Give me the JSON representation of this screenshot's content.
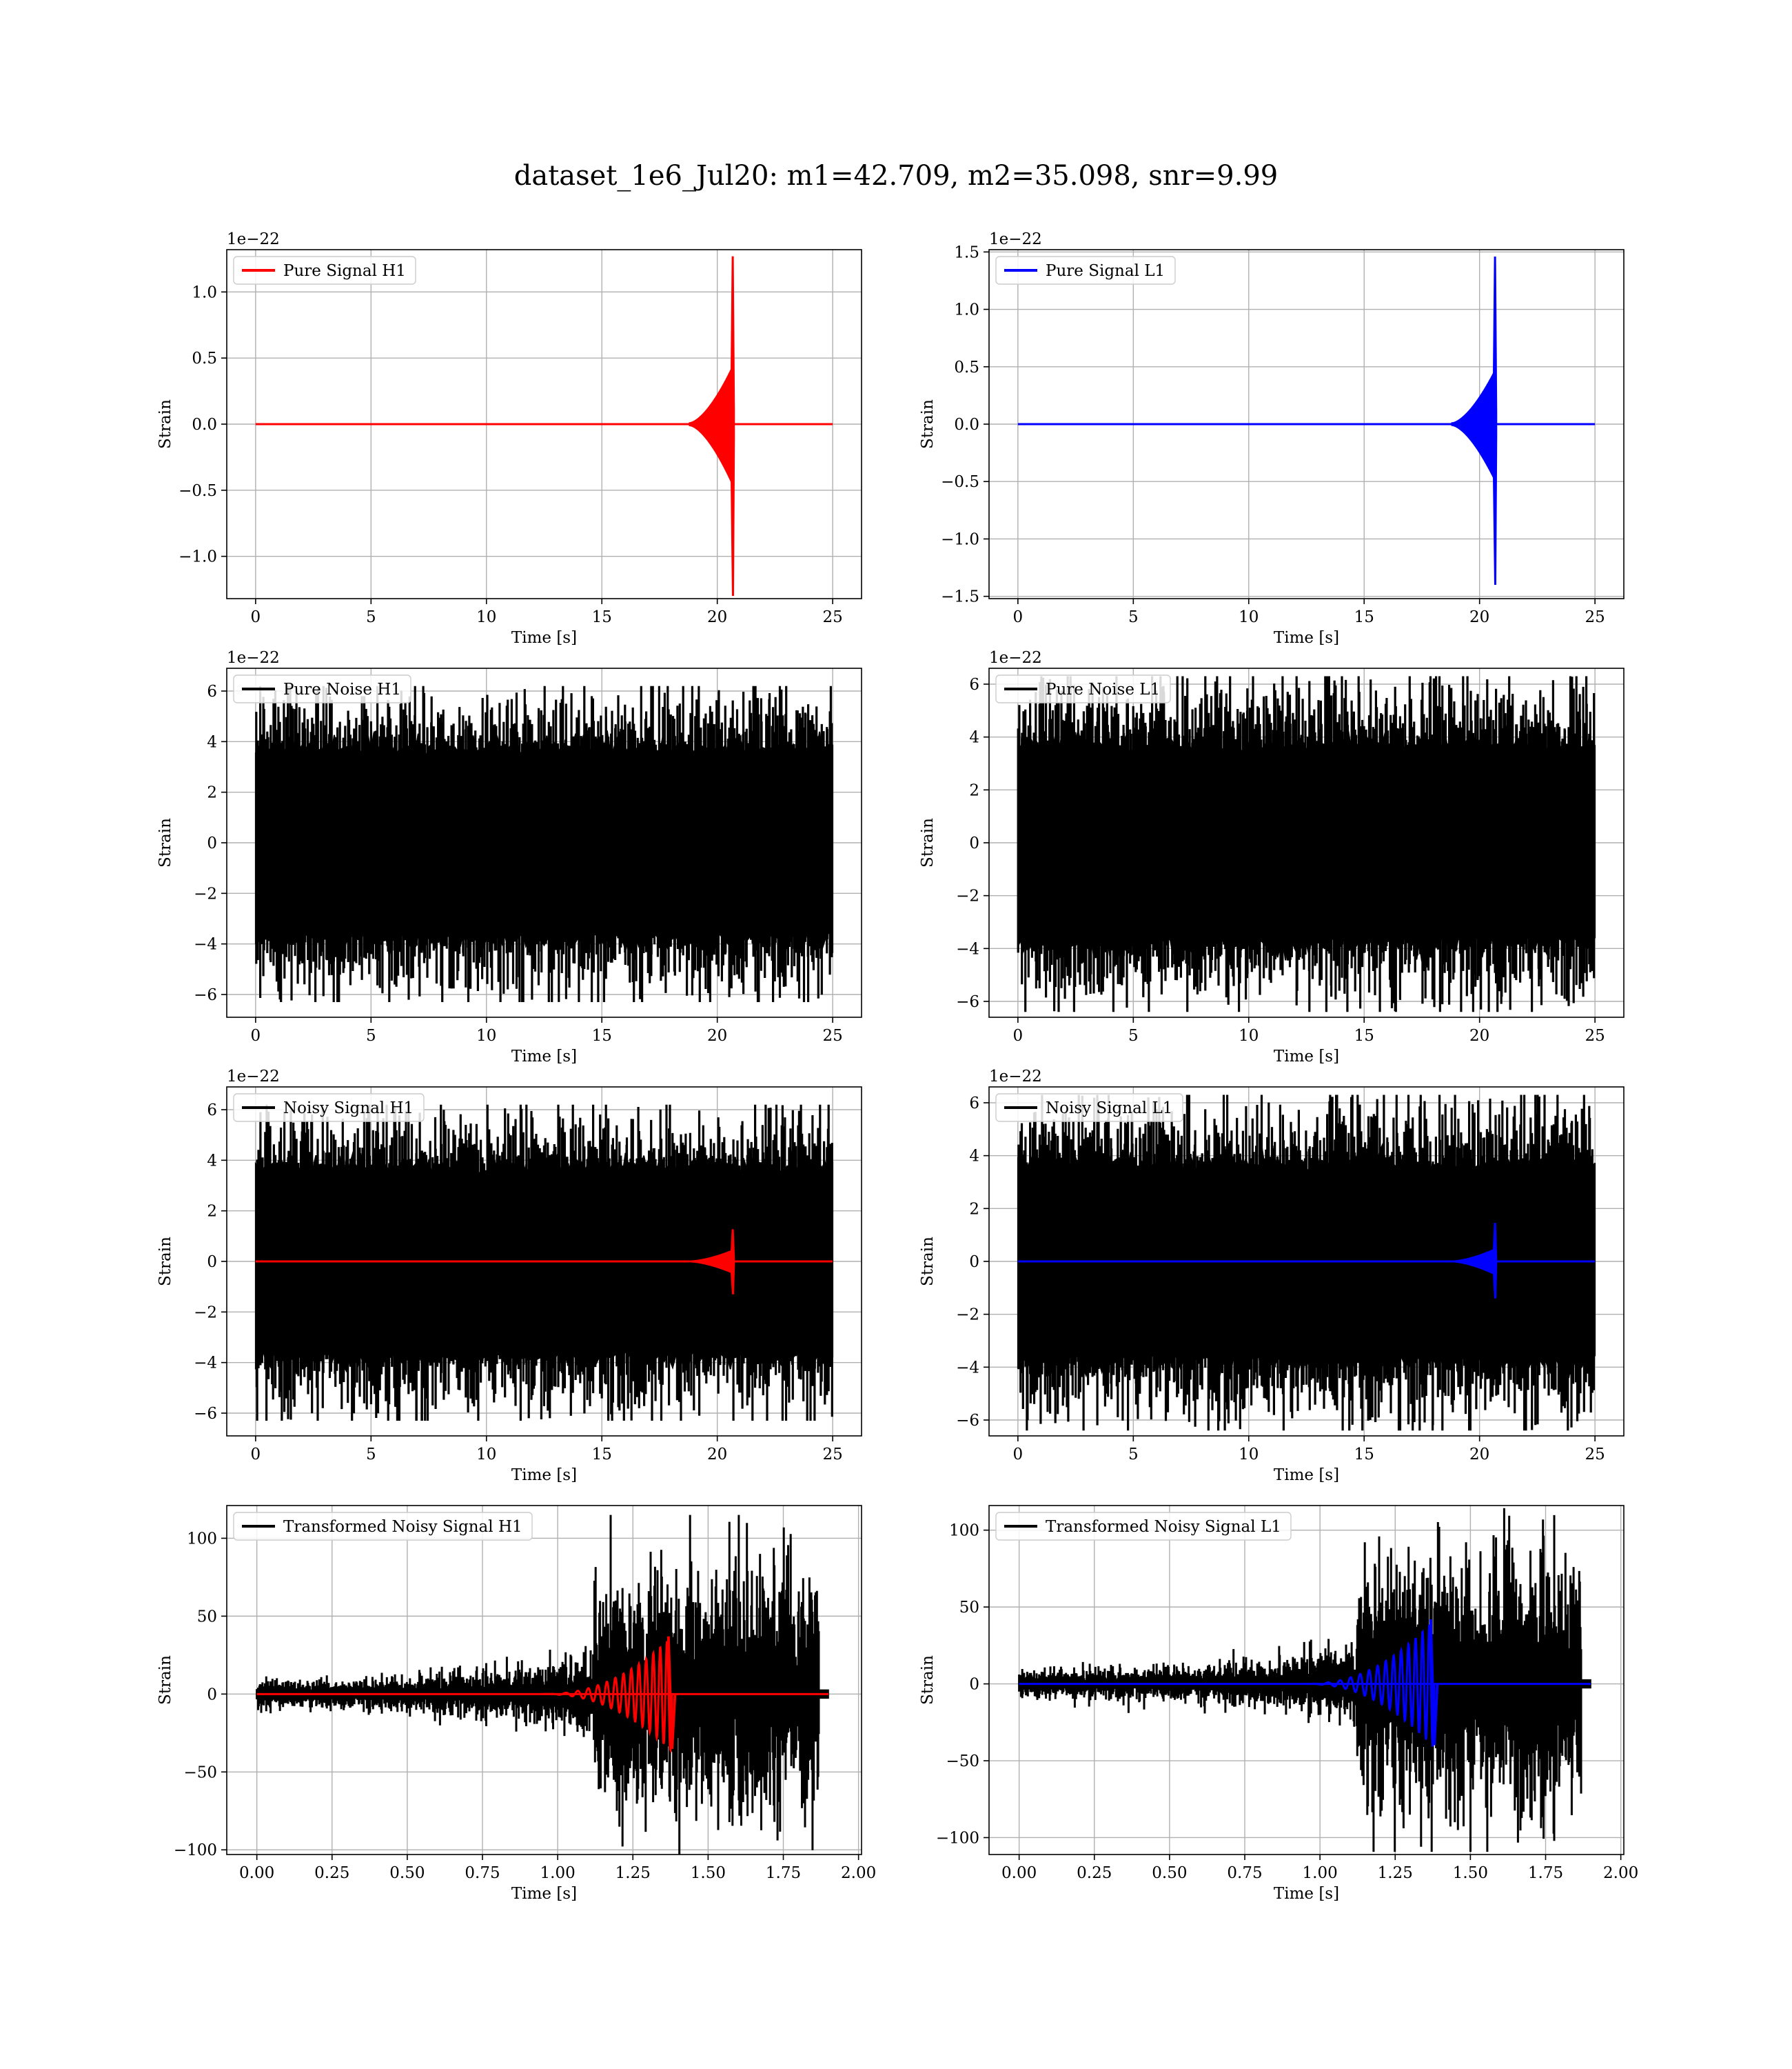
{
  "figure_title": "dataset_1e6_Jul20: m1=42.709, m2=35.098, snr=9.99",
  "colors": {
    "h1_signal": "#ff0000",
    "l1_signal": "#0000ff",
    "noise": "#000000",
    "grid": "#b0b0b0"
  },
  "chart_data": [
    {
      "type": "line",
      "panel": "pure-signal-h1",
      "title": "",
      "xlabel": "Time [s]",
      "ylabel": "Strain",
      "offset_text": "1e−22",
      "xlim": [
        -1.25,
        26.25
      ],
      "ylim": [
        -1.32,
        1.32
      ],
      "xticks": [
        0,
        5,
        10,
        15,
        20,
        25
      ],
      "xtick_labels": [
        "0",
        "5",
        "10",
        "15",
        "20",
        "25"
      ],
      "yticks": [
        -1.0,
        -0.5,
        0.0,
        0.5,
        1.0
      ],
      "ytick_labels": [
        "−1.0",
        "−0.5",
        "0.0",
        "0.5",
        "1.0"
      ],
      "grid": true,
      "legend_placement": "upper-left",
      "series": [
        {
          "name": "Pure Signal H1",
          "color": "#ff0000",
          "kind": "chirp",
          "x_range": [
            0,
            25
          ],
          "merger_t": 20.7,
          "onset_t": 18.8,
          "inspiral_amp": 0.42,
          "peak_up": 1.27,
          "peak_down": -1.3,
          "ringdown_end": 20.75,
          "legend": true
        }
      ]
    },
    {
      "type": "line",
      "panel": "pure-signal-l1",
      "title": "",
      "xlabel": "Time [s]",
      "ylabel": "Strain",
      "offset_text": "1e−22",
      "xlim": [
        -1.25,
        26.25
      ],
      "ylim": [
        -1.52,
        1.52
      ],
      "xticks": [
        0,
        5,
        10,
        15,
        20,
        25
      ],
      "xtick_labels": [
        "0",
        "5",
        "10",
        "15",
        "20",
        "25"
      ],
      "yticks": [
        -1.5,
        -1.0,
        -0.5,
        0.0,
        0.5,
        1.0,
        1.5
      ],
      "ytick_labels": [
        "−1.5",
        "−1.0",
        "−0.5",
        "0.0",
        "0.5",
        "1.0",
        "1.5"
      ],
      "grid": true,
      "legend_placement": "upper-left",
      "series": [
        {
          "name": "Pure Signal L1",
          "color": "#0000ff",
          "kind": "chirp",
          "x_range": [
            0,
            25
          ],
          "merger_t": 20.7,
          "onset_t": 18.8,
          "inspiral_amp": 0.45,
          "peak_up": 1.46,
          "peak_down": -1.4,
          "ringdown_end": 20.75,
          "legend": true
        }
      ]
    },
    {
      "type": "line",
      "panel": "pure-noise-h1",
      "title": "",
      "xlabel": "Time [s]",
      "ylabel": "Strain",
      "offset_text": "1e−22",
      "xlim": [
        -1.25,
        26.25
      ],
      "ylim": [
        -6.9,
        6.9
      ],
      "xticks": [
        0,
        5,
        10,
        15,
        20,
        25
      ],
      "xtick_labels": [
        "0",
        "5",
        "10",
        "15",
        "20",
        "25"
      ],
      "yticks": [
        -6,
        -4,
        -2,
        0,
        2,
        4,
        6
      ],
      "ytick_labels": [
        "−6",
        "−4",
        "−2",
        "0",
        "2",
        "4",
        "6"
      ],
      "grid": true,
      "legend_placement": "upper-left",
      "series": [
        {
          "name": "Pure Noise H1",
          "color": "#000000",
          "kind": "noise",
          "x_range": [
            0,
            25
          ],
          "band": 3.0,
          "peak": 6.2,
          "seed": 11,
          "legend": true
        }
      ]
    },
    {
      "type": "line",
      "panel": "pure-noise-l1",
      "title": "",
      "xlabel": "Time [s]",
      "ylabel": "Strain",
      "offset_text": "1e−22",
      "xlim": [
        -1.25,
        26.25
      ],
      "ylim": [
        -6.6,
        6.6
      ],
      "xticks": [
        0,
        5,
        10,
        15,
        20,
        25
      ],
      "xtick_labels": [
        "0",
        "5",
        "10",
        "15",
        "20",
        "25"
      ],
      "yticks": [
        -6,
        -4,
        -2,
        0,
        2,
        4,
        6
      ],
      "ytick_labels": [
        "−6",
        "−4",
        "−2",
        "0",
        "2",
        "4",
        "6"
      ],
      "grid": true,
      "legend_placement": "upper-left",
      "series": [
        {
          "name": "Pure Noise L1",
          "color": "#000000",
          "kind": "noise",
          "x_range": [
            0,
            25
          ],
          "band": 3.0,
          "peak": 6.3,
          "seed": 23,
          "legend": true
        }
      ]
    },
    {
      "type": "line",
      "panel": "noisy-signal-h1",
      "title": "",
      "xlabel": "Time [s]",
      "ylabel": "Strain",
      "offset_text": "1e−22",
      "xlim": [
        -1.25,
        26.25
      ],
      "ylim": [
        -6.9,
        6.9
      ],
      "xticks": [
        0,
        5,
        10,
        15,
        20,
        25
      ],
      "xtick_labels": [
        "0",
        "5",
        "10",
        "15",
        "20",
        "25"
      ],
      "yticks": [
        -6,
        -4,
        -2,
        0,
        2,
        4,
        6
      ],
      "ytick_labels": [
        "−6",
        "−4",
        "−2",
        "0",
        "2",
        "4",
        "6"
      ],
      "grid": true,
      "legend_placement": "upper-left",
      "series": [
        {
          "name": "Noisy Signal H1",
          "color": "#000000",
          "kind": "noise",
          "x_range": [
            0,
            25
          ],
          "band": 3.0,
          "peak": 6.2,
          "seed": 37,
          "legend": true
        },
        {
          "name": "",
          "color": "#ff0000",
          "kind": "chirp",
          "x_range": [
            0,
            25
          ],
          "merger_t": 20.7,
          "onset_t": 18.8,
          "inspiral_amp": 0.42,
          "peak_up": 1.27,
          "peak_down": -1.3,
          "ringdown_end": 20.75,
          "legend": false
        }
      ]
    },
    {
      "type": "line",
      "panel": "noisy-signal-l1",
      "title": "",
      "xlabel": "Time [s]",
      "ylabel": "Strain",
      "offset_text": "1e−22",
      "xlim": [
        -1.25,
        26.25
      ],
      "ylim": [
        -6.6,
        6.6
      ],
      "xticks": [
        0,
        5,
        10,
        15,
        20,
        25
      ],
      "xtick_labels": [
        "0",
        "5",
        "10",
        "15",
        "20",
        "25"
      ],
      "yticks": [
        -6,
        -4,
        -2,
        0,
        2,
        4,
        6
      ],
      "ytick_labels": [
        "−6",
        "−4",
        "−2",
        "0",
        "2",
        "4",
        "6"
      ],
      "grid": true,
      "legend_placement": "upper-left",
      "series": [
        {
          "name": "Noisy Signal L1",
          "color": "#000000",
          "kind": "noise",
          "x_range": [
            0,
            25
          ],
          "band": 3.0,
          "peak": 6.3,
          "seed": 53,
          "legend": true
        },
        {
          "name": "",
          "color": "#0000ff",
          "kind": "chirp",
          "x_range": [
            0,
            25
          ],
          "merger_t": 20.7,
          "onset_t": 18.8,
          "inspiral_amp": 0.45,
          "peak_up": 1.46,
          "peak_down": -1.4,
          "ringdown_end": 20.75,
          "legend": false
        }
      ]
    },
    {
      "type": "line",
      "panel": "transformed-noisy-signal-h1",
      "title": "",
      "xlabel": "Time [s]",
      "ylabel": "Strain",
      "offset_text": "",
      "xlim": [
        -0.1,
        2.01
      ],
      "ylim": [
        -103,
        121
      ],
      "xticks": [
        0,
        0.25,
        0.5,
        0.75,
        1.0,
        1.25,
        1.5,
        1.75,
        2.0
      ],
      "xtick_labels": [
        "0.00",
        "0.25",
        "0.50",
        "0.75",
        "1.00",
        "1.25",
        "1.50",
        "1.75",
        "2.00"
      ],
      "yticks": [
        -100,
        -50,
        0,
        50,
        100
      ],
      "ytick_labels": [
        "−100",
        "−50",
        "0",
        "50",
        "100"
      ],
      "grid": true,
      "legend_placement": "upper-left",
      "series": [
        {
          "name": "Transformed Noisy Signal H1",
          "color": "#000000",
          "kind": "wnoise",
          "x_range": [
            0,
            1.9
          ],
          "step_t": 1.12,
          "end_t": 1.87,
          "low_band": 5,
          "high_band": 40,
          "peak": 115,
          "seed": 71,
          "legend": true
        },
        {
          "name": "",
          "color": "#ff0000",
          "kind": "wchirp",
          "x_range": [
            0,
            1.9
          ],
          "onset_t": 0.95,
          "merger_t": 1.38,
          "peak": 37,
          "cycles": 14,
          "legend": false
        }
      ]
    },
    {
      "type": "line",
      "panel": "transformed-noisy-signal-l1",
      "title": "",
      "xlabel": "Time [s]",
      "ylabel": "Strain",
      "offset_text": "",
      "xlim": [
        -0.1,
        2.01
      ],
      "ylim": [
        -111,
        116
      ],
      "xticks": [
        0,
        0.25,
        0.5,
        0.75,
        1.0,
        1.25,
        1.5,
        1.75,
        2.0
      ],
      "xtick_labels": [
        "0.00",
        "0.25",
        "0.50",
        "0.75",
        "1.00",
        "1.25",
        "1.50",
        "1.75",
        "2.00"
      ],
      "yticks": [
        -100,
        -50,
        0,
        50,
        100
      ],
      "ytick_labels": [
        "−100",
        "−50",
        "0",
        "50",
        "100"
      ],
      "grid": true,
      "legend_placement": "upper-left",
      "series": [
        {
          "name": "Transformed Noisy Signal L1",
          "color": "#000000",
          "kind": "wnoise",
          "x_range": [
            0,
            1.9
          ],
          "step_t": 1.12,
          "end_t": 1.87,
          "low_band": 5,
          "high_band": 40,
          "peak": 115,
          "seed": 89,
          "legend": true
        },
        {
          "name": "",
          "color": "#0000ff",
          "kind": "wchirp",
          "x_range": [
            0,
            1.9
          ],
          "onset_t": 0.95,
          "merger_t": 1.38,
          "peak": 42,
          "cycles": 14,
          "legend": false
        }
      ]
    }
  ]
}
